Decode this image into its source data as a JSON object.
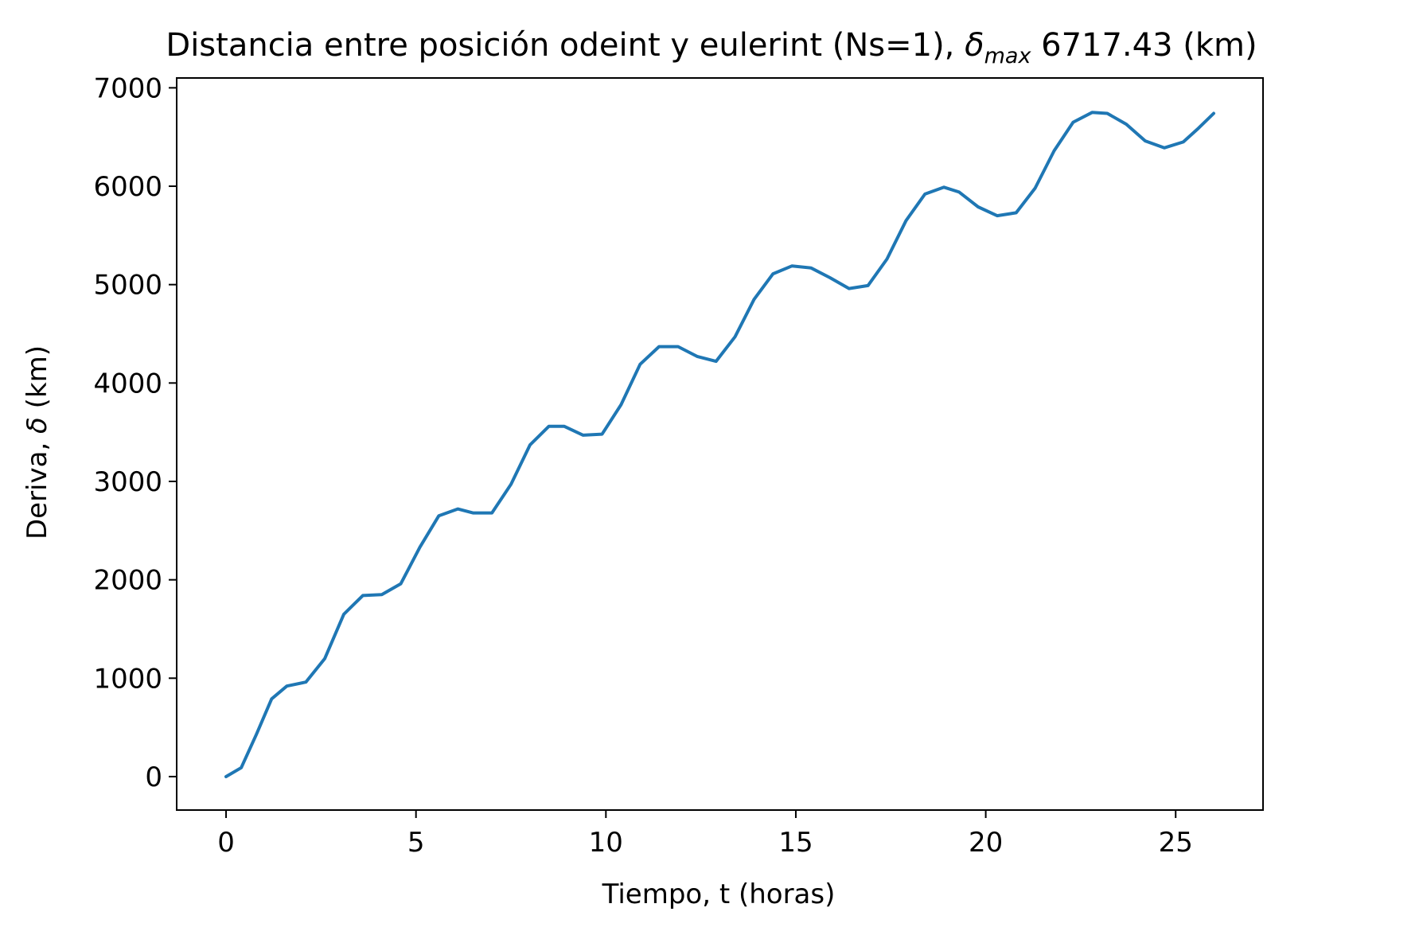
{
  "chart_data": {
    "type": "line",
    "title": "Distancia entre posición odeint y eulerint (Ns=1), δmax 6717.43 (km)",
    "title_parts": {
      "prefix": "Distancia entre posición odeint y eulerint (Ns=1), ",
      "symbol": "δ",
      "subscript": "max",
      "suffix": " 6717.43 (km)"
    },
    "xlabel": "Tiempo, t (horas)",
    "ylabel_parts": {
      "prefix": "Deriva, ",
      "symbol": "δ",
      "suffix": " (km)"
    },
    "xlim": [
      -1.3,
      27.3
    ],
    "ylim": [
      -340,
      7100
    ],
    "xticks": [
      0,
      5,
      10,
      15,
      20,
      25
    ],
    "yticks": [
      0,
      1000,
      2000,
      3000,
      4000,
      5000,
      6000,
      7000
    ],
    "grid": false,
    "line_color": "#1f77b4",
    "series": [
      {
        "x": [
          0,
          0.4,
          0.8,
          1.2,
          1.6,
          2.1,
          2.6,
          3.1,
          3.6,
          4.1,
          4.6,
          5.1,
          5.6,
          6.1,
          6.5,
          7.0,
          7.5,
          8.0,
          8.5,
          8.9,
          9.4,
          9.9,
          10.4,
          10.9,
          11.4,
          11.9,
          12.4,
          12.9,
          13.4,
          13.9,
          14.4,
          14.9,
          15.4,
          15.9,
          16.4,
          16.9,
          17.4,
          17.9,
          18.4,
          18.9,
          19.3,
          19.8,
          20.3,
          20.8,
          21.3,
          21.8,
          22.3,
          22.8,
          23.2,
          23.7,
          24.2,
          24.7,
          25.2,
          25.6,
          26.0
        ],
        "y": [
          0,
          90,
          430,
          790,
          920,
          960,
          1200,
          1650,
          1840,
          1850,
          1960,
          2330,
          2650,
          2720,
          2680,
          2680,
          2970,
          3370,
          3560,
          3560,
          3470,
          3480,
          3780,
          4190,
          4370,
          4370,
          4270,
          4220,
          4470,
          4850,
          5110,
          5190,
          5170,
          5070,
          4960,
          4990,
          5260,
          5650,
          5920,
          5990,
          5940,
          5790,
          5700,
          5730,
          5980,
          6360,
          6650,
          6750,
          6740,
          6630,
          6460,
          6390,
          6450,
          6590,
          6740
        ]
      }
    ]
  }
}
